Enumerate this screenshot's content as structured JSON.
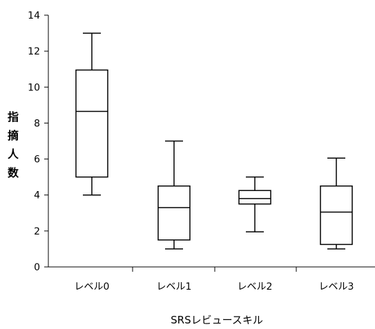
{
  "chart_data": {
    "type": "boxplot",
    "title": "",
    "xlabel": "SRSレビュースキル",
    "ylabel": "指摘人数",
    "ylim": [
      0,
      14
    ],
    "yticks": [
      0,
      2,
      4,
      6,
      8,
      10,
      12,
      14
    ],
    "grid": false,
    "categories": [
      "レベル0",
      "レベル1",
      "レベル2",
      "レベル3"
    ],
    "boxes": [
      {
        "min": 4,
        "q1": 5,
        "median": 8.65,
        "q3": 10.95,
        "max": 13
      },
      {
        "min": 1,
        "q1": 1.5,
        "median": 3.3,
        "q3": 4.5,
        "max": 7
      },
      {
        "min": 1.95,
        "q1": 3.5,
        "median": 3.8,
        "q3": 4.25,
        "max": 5
      },
      {
        "min": 1,
        "q1": 1.25,
        "median": 3.05,
        "q3": 4.5,
        "max": 6.05
      }
    ]
  },
  "colors": {
    "line": "#000000",
    "background": "#ffffff"
  }
}
